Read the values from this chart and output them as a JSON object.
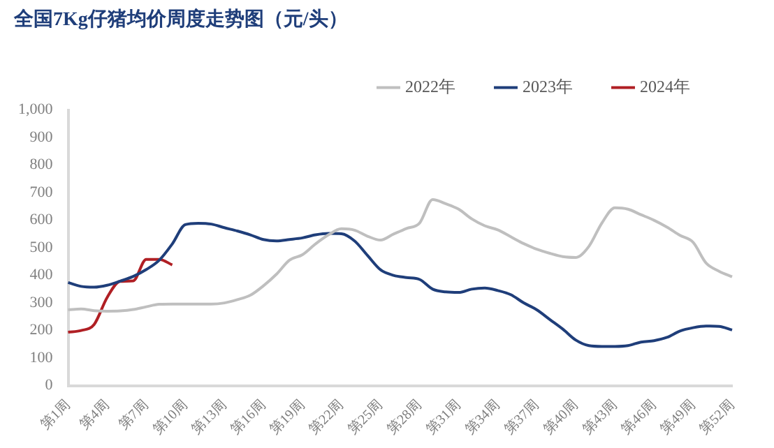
{
  "chart_data": {
    "type": "line",
    "title": "全国7Kg仔猪均价周度走势图（元/头）",
    "categories": [
      "第1周",
      null,
      null,
      "第4周",
      null,
      null,
      "第7周",
      null,
      null,
      "第10周",
      null,
      null,
      "第13周",
      null,
      null,
      "第16周",
      null,
      null,
      "第19周",
      null,
      null,
      "第22周",
      null,
      null,
      "第25周",
      null,
      null,
      "第28周",
      null,
      null,
      "第31周",
      null,
      null,
      "第34周",
      null,
      null,
      "第37周",
      null,
      null,
      "第40周",
      null,
      null,
      "第43周",
      null,
      null,
      "第46周",
      null,
      null,
      "第49周",
      null,
      null,
      "第52周"
    ],
    "series": [
      {
        "name": "2022年",
        "color": "#bfbfbf",
        "values": [
          275,
          278,
          272,
          270,
          271,
          276,
          286,
          295,
          296,
          296,
          296,
          296,
          300,
          312,
          328,
          362,
          404,
          455,
          475,
          514,
          547,
          569,
          564,
          542,
          528,
          550,
          570,
          590,
          675,
          660,
          640,
          605,
          580,
          565,
          540,
          515,
          495,
          480,
          468,
          465,
          505,
          590,
          645,
          640,
          620,
          600,
          575,
          545,
          520,
          445,
          415,
          395
        ]
      },
      {
        "name": "2023年",
        "color": "#1f3e7a",
        "values": [
          374,
          360,
          357,
          364,
          379,
          396,
          421,
          455,
          514,
          584,
          589,
          586,
          573,
          561,
          547,
          530,
          525,
          530,
          536,
          547,
          552,
          551,
          525,
          472,
          420,
          400,
          392,
          385,
          350,
          340,
          338,
          350,
          354,
          345,
          330,
          300,
          275,
          240,
          205,
          165,
          145,
          142,
          142,
          145,
          158,
          163,
          175,
          198,
          210,
          216,
          215,
          202
        ]
      },
      {
        "name": "2024年",
        "color": "#b01f24",
        "values": [
          194,
          200,
          222,
          320,
          378,
          380,
          458,
          458,
          438,
          null,
          null,
          null,
          null,
          null,
          null,
          null,
          null,
          null,
          null,
          null,
          null,
          null,
          null,
          null,
          null,
          null,
          null,
          null,
          null,
          null,
          null,
          null,
          null,
          null,
          null,
          null,
          null,
          null,
          null,
          null,
          null,
          null,
          null,
          null,
          null,
          null,
          null,
          null,
          null,
          null,
          null,
          null
        ]
      }
    ],
    "ylim": [
      0,
      1000
    ],
    "yticks": [
      0,
      100,
      200,
      300,
      400,
      500,
      600,
      700,
      800,
      900,
      {
        "value": 1000,
        "label": "1,000"
      }
    ],
    "grid": false,
    "legend": "top",
    "marker": "none",
    "line_style": "solid"
  }
}
